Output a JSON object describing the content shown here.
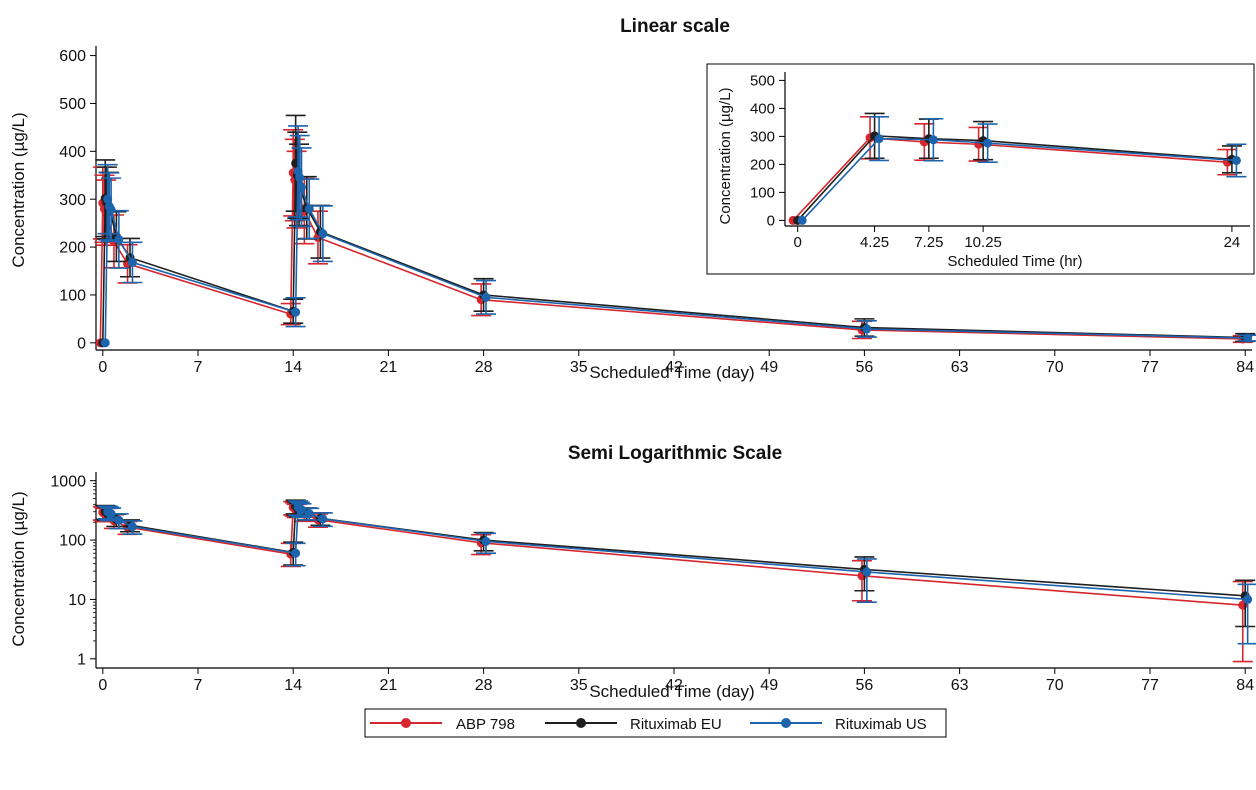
{
  "series_meta": [
    {
      "name": "ABP 798",
      "color": "#d7262e"
    },
    {
      "name": "Rituximab EU",
      "color": "#1f1f1f"
    },
    {
      "name": "Rituximab US",
      "color": "#1c64ad"
    }
  ],
  "chart_data": [
    {
      "type": "line",
      "title": "Linear scale",
      "xlabel": "Scheduled Time (day)",
      "ylabel": "Concentration (µg/L)",
      "xlim": [
        -0.5,
        84.5
      ],
      "ylim": [
        -15,
        620
      ],
      "yscale": "linear",
      "xticks": [
        0,
        7,
        14,
        21,
        28,
        35,
        42,
        49,
        56,
        63,
        70,
        77,
        84
      ],
      "yticks": [
        0,
        100,
        200,
        300,
        400,
        500,
        600
      ],
      "x": [
        0,
        0.18,
        0.3,
        0.43,
        1,
        2,
        14,
        14.18,
        14.3,
        14.43,
        15,
        16,
        28,
        56,
        84
      ],
      "series": [
        {
          "name": "ABP 798",
          "values": [
            0,
            292,
            280,
            272,
            212,
            165,
            60,
            355,
            340,
            320,
            275,
            220,
            90,
            27,
            8
          ],
          "err": [
            0,
            75,
            70,
            68,
            55,
            40,
            22,
            90,
            85,
            80,
            68,
            55,
            33,
            18,
            7
          ]
        },
        {
          "name": "Rituximab EU",
          "values": [
            0,
            302,
            292,
            286,
            222,
            178,
            66,
            375,
            350,
            330,
            282,
            232,
            100,
            32,
            11
          ],
          "err": [
            0,
            80,
            75,
            70,
            52,
            40,
            25,
            100,
            90,
            85,
            65,
            55,
            34,
            18,
            8
          ]
        },
        {
          "name": "Rituximab US",
          "values": [
            0,
            300,
            285,
            278,
            216,
            168,
            64,
            358,
            345,
            325,
            280,
            228,
            95,
            29,
            10
          ],
          "err": [
            0,
            72,
            70,
            66,
            60,
            42,
            30,
            95,
            88,
            82,
            62,
            58,
            35,
            17,
            6
          ]
        }
      ]
    },
    {
      "type": "line",
      "title": "",
      "xlabel": "Scheduled Time (hr)",
      "ylabel": "Concentration (µg/L)",
      "xlim": [
        -0.7,
        25
      ],
      "ylim": [
        -20,
        530
      ],
      "yscale": "linear",
      "xticks": [
        0,
        4.25,
        7.25,
        10.25,
        24
      ],
      "xticklabels": [
        "0",
        "4.25",
        "7.25",
        "10.25",
        "24"
      ],
      "yticks": [
        0,
        100,
        200,
        300,
        400,
        500
      ],
      "x": [
        0,
        4.25,
        7.25,
        10.25,
        24
      ],
      "series": [
        {
          "name": "ABP 798",
          "values": [
            0,
            295,
            280,
            272,
            208
          ],
          "err": [
            0,
            75,
            65,
            60,
            45
          ]
        },
        {
          "name": "Rituximab EU",
          "values": [
            0,
            302,
            292,
            285,
            218
          ],
          "err": [
            0,
            80,
            70,
            68,
            48
          ]
        },
        {
          "name": "Rituximab US",
          "values": [
            0,
            292,
            288,
            276,
            214
          ],
          "err": [
            0,
            78,
            75,
            68,
            58
          ]
        }
      ]
    },
    {
      "type": "line",
      "title": "Semi Logarithmic Scale",
      "xlabel": "Scheduled Time (day)",
      "ylabel": "Concentration (µg/L)",
      "xlim": [
        -0.5,
        84.5
      ],
      "ylim": [
        0.7,
        1400
      ],
      "yscale": "log",
      "xticks": [
        0,
        7,
        14,
        21,
        28,
        35,
        42,
        49,
        56,
        63,
        70,
        77,
        84
      ],
      "yticks": [
        1,
        10,
        100,
        1000
      ],
      "x": [
        0,
        0.18,
        0.3,
        0.43,
        1,
        2,
        14,
        14.18,
        14.3,
        14.43,
        15,
        16,
        28,
        56,
        84
      ],
      "series": [
        {
          "name": "ABP 798",
          "values": [
            null,
            292,
            280,
            272,
            212,
            165,
            58,
            355,
            340,
            320,
            275,
            220,
            90,
            25,
            8
          ],
          "lower": [
            null,
            217,
            210,
            204,
            157,
            125,
            36,
            265,
            255,
            240,
            207,
            165,
            57,
            9.5,
            0.9
          ],
          "upper": [
            null,
            367,
            350,
            340,
            267,
            205,
            88,
            445,
            425,
            400,
            343,
            275,
            123,
            45,
            20
          ]
        },
        {
          "name": "Rituximab EU",
          "values": [
            null,
            302,
            292,
            286,
            222,
            178,
            62,
            372,
            350,
            330,
            282,
            232,
            100,
            32,
            11.5
          ],
          "lower": [
            null,
            222,
            217,
            216,
            170,
            138,
            38,
            275,
            260,
            245,
            217,
            177,
            66,
            14,
            3.5
          ],
          "upper": [
            null,
            382,
            367,
            356,
            274,
            218,
            92,
            470,
            440,
            415,
            347,
            287,
            134,
            52,
            21
          ]
        },
        {
          "name": "Rituximab US",
          "values": [
            null,
            300,
            285,
            278,
            216,
            168,
            60,
            358,
            345,
            325,
            280,
            228,
            95,
            29,
            10
          ],
          "lower": [
            null,
            228,
            215,
            212,
            156,
            126,
            37,
            263,
            257,
            243,
            218,
            170,
            60,
            9,
            1.8
          ],
          "upper": [
            null,
            372,
            355,
            344,
            276,
            210,
            88,
            453,
            433,
            407,
            342,
            286,
            130,
            48,
            18
          ]
        }
      ]
    }
  ]
}
